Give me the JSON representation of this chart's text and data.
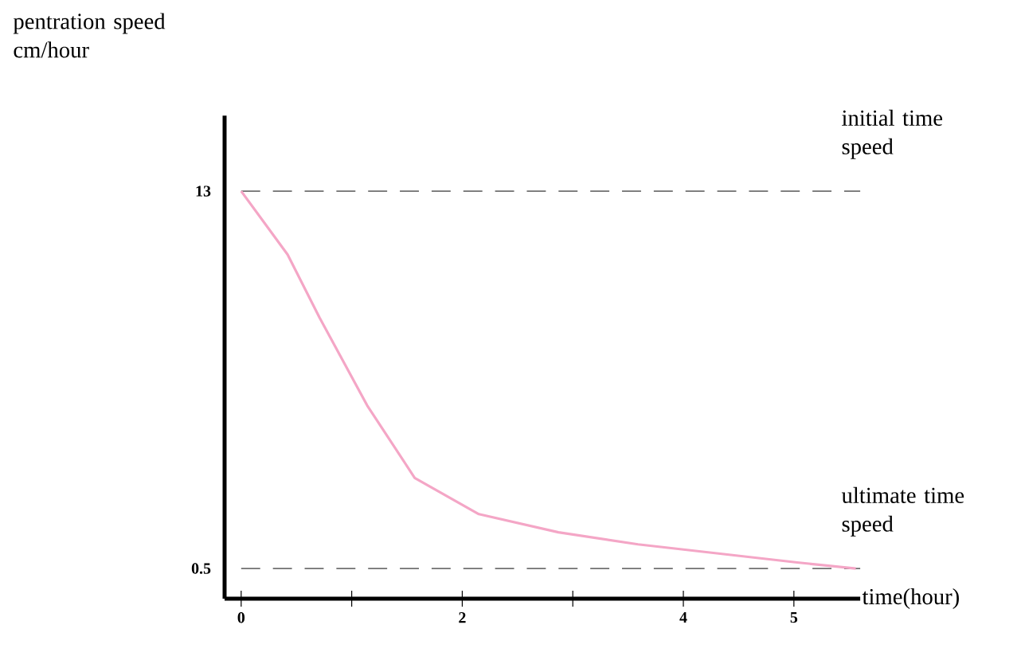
{
  "chart_data": {
    "type": "line",
    "xlabel": "time(hour)",
    "ylabel": "pentration speed cm/hour",
    "x": [
      0,
      0.42,
      0.71,
      1.14,
      1.57,
      2.15,
      2.87,
      3.59,
      4.31,
      5.03,
      5.56
    ],
    "series": [
      {
        "color": "#f4a6c6",
        "values": [
          13,
          10.9,
          8.8,
          5.9,
          3.5,
          2.3,
          1.7,
          1.3,
          1.0,
          0.7,
          0.5
        ]
      }
    ],
    "xlim": [
      -0.15,
      5.6
    ],
    "ylim": [
      -0.5,
      15.5
    ],
    "xticks": [
      0,
      {
        "value": 1,
        "label": null
      },
      2,
      {
        "value": 3,
        "label": null
      },
      4,
      5
    ],
    "yticks": [
      0.5,
      13
    ],
    "ref_lines": [
      {
        "axis": "y",
        "value": 13,
        "label": "initial time speed",
        "color": "#707070",
        "line_style": "dashed"
      },
      {
        "axis": "y",
        "value": 0.5,
        "label": "ultimate time speed",
        "color": "#707070",
        "line_style": "dashed"
      }
    ],
    "marker": "none",
    "line_style": "solid"
  }
}
